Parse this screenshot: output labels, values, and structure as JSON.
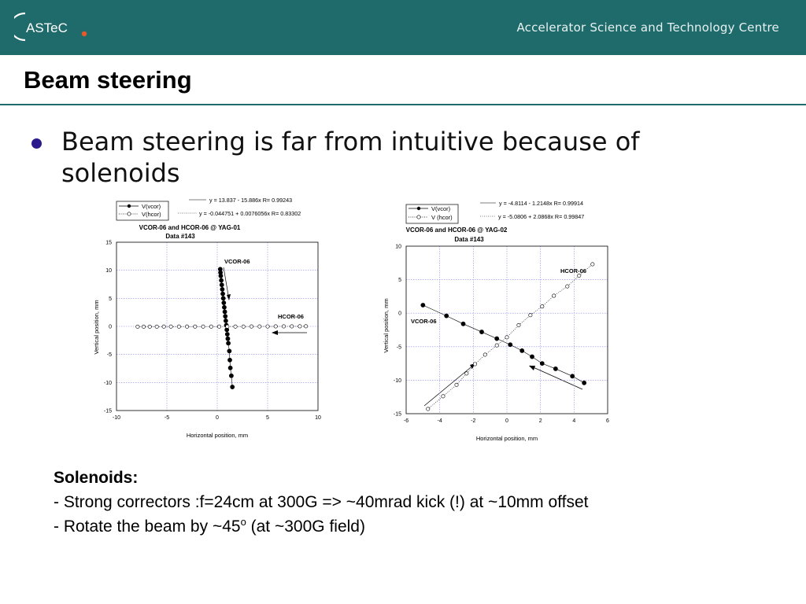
{
  "header": {
    "logo_text": "ASTeC",
    "org_name": "Accelerator Science and Technology Centre"
  },
  "slide": {
    "title": "Beam steering",
    "bullet": "Beam steering is far from intuitive because of solenoids"
  },
  "chart_data": [
    {
      "type": "scatter",
      "title_line1": "VCOR-06 and HCOR-06 @ YAG-01",
      "title_line2": "Data #143",
      "xlabel": "Horizontal position, mm",
      "ylabel": "Vertical position, mm",
      "xlim": [
        -10,
        10
      ],
      "ylim": [
        -15,
        15
      ],
      "xticks": [
        -10,
        -5,
        0,
        5,
        10
      ],
      "yticks": [
        -15,
        -10,
        -5,
        0,
        5,
        10,
        15
      ],
      "grid": true,
      "legend": [
        "V(vcor)",
        "V(hcor)"
      ],
      "fits": [
        "y = 13.837 - 15.886x   R= 0.99243",
        "y = -0.044751 + 0.0076056x   R= 0.83302"
      ],
      "annotations": [
        "VCOR-06",
        "HCOR-06"
      ],
      "series": [
        {
          "name": "V(vcor)",
          "marker": "filled",
          "x": [
            0.3,
            0.32,
            0.35,
            0.4,
            0.45,
            0.5,
            0.55,
            0.6,
            0.65,
            0.7,
            0.75,
            0.8,
            0.85,
            0.9,
            0.95,
            1.0,
            1.05,
            1.1,
            1.2,
            1.25,
            1.3,
            1.4,
            1.5
          ],
          "y": [
            10.2,
            9.6,
            9.0,
            8.2,
            7.4,
            6.6,
            5.8,
            5.0,
            4.2,
            3.4,
            2.6,
            1.8,
            1.0,
            0.2,
            -0.6,
            -1.4,
            -2.2,
            -3.0,
            -4.4,
            -6.0,
            -7.4,
            -8.8,
            -10.8
          ]
        },
        {
          "name": "V(hcor)",
          "marker": "open",
          "x": [
            -7.9,
            -7.3,
            -6.7,
            -6.0,
            -5.3,
            -4.6,
            -3.8,
            -3.0,
            -2.2,
            -1.4,
            -0.6,
            0.2,
            1.0,
            1.8,
            2.6,
            3.4,
            4.2,
            5.0,
            5.8,
            6.6,
            7.4,
            8.2,
            8.8
          ],
          "y": [
            -0.05,
            -0.05,
            -0.05,
            -0.05,
            -0.04,
            -0.04,
            -0.04,
            -0.04,
            -0.04,
            -0.04,
            -0.04,
            -0.04,
            -0.03,
            -0.03,
            -0.03,
            -0.02,
            -0.02,
            -0.01,
            0.0,
            0.0,
            0.0,
            0.01,
            0.02
          ]
        }
      ]
    },
    {
      "type": "scatter",
      "title_line1": "VCOR-06 and HCOR-06 @ YAG-02",
      "title_line2": "Data #143",
      "xlabel": "Horizontal position, mm",
      "ylabel": "Vertical position, mm",
      "xlim": [
        -6,
        6
      ],
      "ylim": [
        -15,
        10
      ],
      "xticks": [
        -6,
        -4,
        -2,
        0,
        2,
        4,
        6
      ],
      "yticks": [
        -15,
        -10,
        -5,
        0,
        5,
        10
      ],
      "grid": true,
      "legend": [
        "V(vcor)",
        "V (hcor)"
      ],
      "fits": [
        "y = -4.8114 - 1.2148x   R= 0.99914",
        "y = -5.0806 + 2.0868x   R= 0.99847"
      ],
      "annotations": [
        "HCOR-06",
        "VCOR-06"
      ],
      "series": [
        {
          "name": "V(vcor)",
          "marker": "filled",
          "x": [
            -5.0,
            -3.6,
            -2.6,
            -1.5,
            -0.6,
            0.2,
            0.9,
            1.5,
            2.1,
            2.9,
            3.9,
            4.6
          ],
          "y": [
            1.2,
            -0.4,
            -1.6,
            -2.8,
            -3.8,
            -4.7,
            -5.6,
            -6.5,
            -7.5,
            -8.3,
            -9.4,
            -10.4
          ]
        },
        {
          "name": "V (hcor)",
          "marker": "open",
          "x": [
            -4.7,
            -3.8,
            -3.0,
            -2.4,
            -1.9,
            -1.3,
            -0.6,
            0.0,
            0.7,
            1.4,
            2.1,
            2.8,
            3.6,
            4.3,
            5.1
          ],
          "y": [
            -14.3,
            -12.4,
            -10.7,
            -9.0,
            -7.6,
            -6.2,
            -4.8,
            -3.6,
            -1.8,
            -0.3,
            1.0,
            2.6,
            4.0,
            5.6,
            7.3
          ]
        }
      ]
    }
  ],
  "solenoids": {
    "heading": "Solenoids:",
    "line1": "- Strong correctors :f=24cm at 300G => ~40mrad kick (!) at ~10mm offset",
    "line2_pre": "- Rotate the beam by ~45",
    "line2_sup": "o",
    "line2_post": " (at ~300G field)"
  }
}
